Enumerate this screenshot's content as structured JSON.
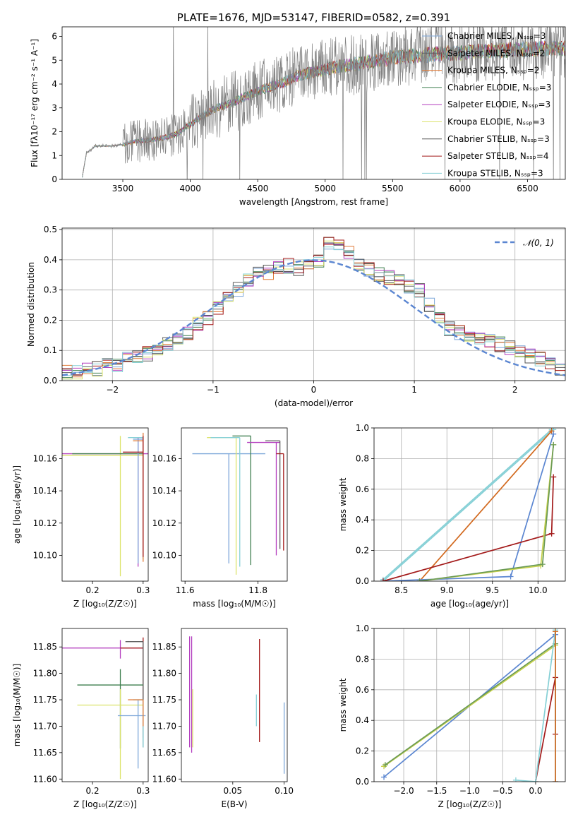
{
  "colors": {
    "chabrier_miles": "#7da7d9",
    "salpeter_miles": "#5f5f5f",
    "kroupa_miles": "#e07b39",
    "chabrier_elodie": "#3f7f4f",
    "salpeter_elodie": "#b43fbf",
    "kroupa_elodie": "#dce36b",
    "chabrier_stelib": "#555555",
    "salpeter_stelib": "#a31a1a",
    "kroupa_stelib": "#86d0d6",
    "gauss": "#5b86d1",
    "line_blue": "#5b86d1",
    "line_orange": "#d2691e",
    "line_red": "#a31a1a",
    "line_cyan": "#86d0d6",
    "line_yellow": "#c8d24d",
    "line_green": "#6a9a55"
  },
  "chart_data": [
    {
      "id": "spectrum",
      "type": "line",
      "title": "PLATE=1676, MJD=53147, FIBERID=0582, z=0.391",
      "xlabel": "wavelength [Angstrom, rest frame]",
      "ylabel": "Flux [fλ10⁻¹⁷ erg cm⁻² s⁻¹ A⁻¹]",
      "xlim": [
        3050,
        6780
      ],
      "ylim": [
        0,
        6.4
      ],
      "xticks": [
        "3500",
        "4000",
        "4500",
        "5000",
        "5500",
        "6000",
        "6500"
      ],
      "yticks": [
        "0",
        "1",
        "2",
        "3",
        "4",
        "5",
        "6"
      ],
      "legend": [
        "Chabrier MILES, N_SSP=3",
        "Salpeter MILES, N_SSP=2",
        "Kroupa MILES, N_SSP=2",
        "Chabrier ELODIE, N_SSP=3",
        "Salpeter ELODIE, N_SSP=3",
        "Kroupa ELODIE, N_SSP=3",
        "Chabrier STELIB, N_SSP=3",
        "Salpeter STELIB, N_SSP=4",
        "Kroupa STELIB, N_SSP=3"
      ],
      "legend_loc": "upper-right",
      "continuum": [
        [
          3200,
          0.1
        ],
        [
          3230,
          1.1
        ],
        [
          3300,
          1.4
        ],
        [
          3400,
          1.4
        ],
        [
          3500,
          1.45
        ],
        [
          3600,
          1.6
        ],
        [
          3700,
          1.65
        ],
        [
          3800,
          1.75
        ],
        [
          3900,
          1.9
        ],
        [
          4000,
          2.3
        ],
        [
          4100,
          2.7
        ],
        [
          4200,
          3.0
        ],
        [
          4300,
          3.2
        ],
        [
          4400,
          3.45
        ],
        [
          4500,
          3.7
        ],
        [
          4600,
          3.9
        ],
        [
          4700,
          4.1
        ],
        [
          4800,
          4.35
        ],
        [
          4900,
          4.5
        ],
        [
          5000,
          4.6
        ],
        [
          5100,
          4.75
        ],
        [
          5200,
          4.8
        ],
        [
          5300,
          4.9
        ],
        [
          5400,
          5.0
        ],
        [
          5500,
          5.1
        ],
        [
          5600,
          5.15
        ],
        [
          5700,
          5.2
        ],
        [
          5800,
          5.25
        ],
        [
          5900,
          5.3
        ],
        [
          6000,
          5.3
        ],
        [
          6100,
          5.35
        ],
        [
          6200,
          5.4
        ],
        [
          6300,
          5.4
        ],
        [
          6400,
          5.45
        ],
        [
          6500,
          5.45
        ],
        [
          6600,
          5.5
        ],
        [
          6700,
          5.5
        ]
      ]
    },
    {
      "id": "residuals",
      "type": "histogram",
      "xlabel": "(data-model)/error",
      "ylabel": "Normed distribution",
      "xlim": [
        -2.5,
        2.5
      ],
      "ylim": [
        0,
        0.505
      ],
      "xticks": [
        "−2",
        "−1",
        "0",
        "1",
        "2"
      ],
      "yticks": [
        "0.0",
        "0.1",
        "0.2",
        "0.3",
        "0.4",
        "0.5"
      ],
      "legend": [
        "𝒩(0, 1)"
      ],
      "legend_loc": "upper-right",
      "grid": true,
      "hist_template": [
        0.03,
        0.03,
        0.04,
        0.04,
        0.05,
        0.05,
        0.07,
        0.08,
        0.09,
        0.1,
        0.12,
        0.14,
        0.16,
        0.19,
        0.21,
        0.24,
        0.27,
        0.3,
        0.33,
        0.36,
        0.36,
        0.38,
        0.38,
        0.37,
        0.38,
        0.4,
        0.46,
        0.45,
        0.42,
        0.39,
        0.37,
        0.35,
        0.34,
        0.33,
        0.31,
        0.3,
        0.25,
        0.2,
        0.17,
        0.16,
        0.15,
        0.14,
        0.13,
        0.12,
        0.11,
        0.1,
        0.08,
        0.07,
        0.05,
        0.04
      ]
    },
    {
      "id": "age-vs-Z",
      "type": "errorbar",
      "xlabel": "Z [log₁₀(Z/Z☉)]",
      "ylabel": "age  [log₁₀(age/yr)]",
      "xlim": [
        0.14,
        0.31
      ],
      "ylim": [
        10.084,
        10.179
      ],
      "xticks": [
        "0.2",
        "0.3"
      ],
      "yticks": [
        "10.10",
        "10.12",
        "10.14",
        "10.16"
      ],
      "points": [
        {
          "x": 0.255,
          "y": 10.162,
          "xe": [
            0.115,
            0.045
          ],
          "ye": [
            0.075,
            0.012
          ],
          "c": "kroupa_elodie"
        },
        {
          "x": 0.29,
          "y": 10.163,
          "xe": [
            0.15,
            0.02
          ],
          "ye": [
            0.07,
            0.01
          ],
          "c": "salpeter_elodie"
        },
        {
          "x": 0.3,
          "y": 10.163,
          "xe": [
            0.14,
            0.0
          ],
          "ye": [
            0.065,
            0.008
          ],
          "c": "chabrier_elodie"
        },
        {
          "x": 0.3,
          "y": 10.173,
          "xe": [
            0.03,
            0.0
          ],
          "ye": [
            0.075,
            0.0
          ],
          "c": "kroupa_stelib"
        },
        {
          "x": 0.29,
          "y": 10.172,
          "xe": [
            0.01,
            0.01
          ],
          "ye": [
            0.077,
            0.0
          ],
          "c": "chabrier_miles"
        },
        {
          "x": 0.3,
          "y": 10.171,
          "xe": [
            0.02,
            0.0
          ],
          "ye": [
            0.075,
            0.005
          ],
          "c": "kroupa_miles"
        },
        {
          "x": 0.3,
          "y": 10.164,
          "xe": [
            0.04,
            0.0
          ],
          "ye": [
            0.065,
            0.01
          ],
          "c": "salpeter_stelib"
        }
      ]
    },
    {
      "id": "age-vs-mass",
      "type": "errorbar",
      "xlabel": "mass [log₁₀(M/M☉)]",
      "ylabel": "",
      "xlim": [
        11.59,
        11.88
      ],
      "ylim": [
        10.084,
        10.179
      ],
      "xticks": [
        "11.6",
        "11.8"
      ],
      "yticks": [
        "10.10",
        "10.12",
        "10.14",
        "10.16"
      ],
      "points": [
        {
          "x": 11.72,
          "y": 10.163,
          "xe": [
            0.1,
            0.1
          ],
          "ye": [
            0.068,
            0.0
          ],
          "c": "chabrier_miles"
        },
        {
          "x": 11.74,
          "y": 10.173,
          "xe": [
            0.08,
            0.0
          ],
          "ye": [
            0.085,
            0.0
          ],
          "c": "kroupa_elodie"
        },
        {
          "x": 11.75,
          "y": 10.173,
          "xe": [
            0.08,
            0.0
          ],
          "ye": [
            0.08,
            0.0
          ],
          "c": "kroupa_stelib"
        },
        {
          "x": 11.78,
          "y": 10.174,
          "xe": [
            0.05,
            0.0
          ],
          "ye": [
            0.08,
            0.0
          ],
          "c": "chabrier_elodie"
        },
        {
          "x": 11.85,
          "y": 10.17,
          "xe": [
            0.08,
            0.01
          ],
          "ye": [
            0.07,
            0.0
          ],
          "c": "salpeter_elodie"
        },
        {
          "x": 11.86,
          "y": 10.171,
          "xe": [
            0.04,
            0.0
          ],
          "ye": [
            0.067,
            0.0
          ],
          "c": "salpeter_miles"
        },
        {
          "x": 11.87,
          "y": 10.163,
          "xe": [
            0.02,
            0.0
          ],
          "ye": [
            0.06,
            0.0
          ],
          "c": "salpeter_stelib"
        }
      ]
    },
    {
      "id": "weight-vs-age",
      "type": "line",
      "xlabel": "age  [log₁₀(age/yr)]",
      "ylabel": "mass weight",
      "xlim": [
        8.2,
        10.3
      ],
      "ylim": [
        0,
        1.0
      ],
      "xticks": [
        "8.5",
        "9.0",
        "9.5",
        "10.0"
      ],
      "yticks": [
        "0.0",
        "0.2",
        "0.4",
        "0.6",
        "0.8",
        "1.0"
      ],
      "grid": true,
      "series": [
        {
          "c": "line_cyan",
          "x": [
            8.3,
            10.17
          ],
          "y": [
            0.0,
            0.99
          ]
        },
        {
          "c": "line_cyan",
          "x": [
            8.3,
            10.15
          ],
          "y": [
            0.01,
            0.99
          ]
        },
        {
          "c": "line_orange",
          "x": [
            8.7,
            10.15
          ],
          "y": [
            0.0,
            0.98
          ]
        },
        {
          "c": "line_blue",
          "x": [
            8.3,
            9.7,
            10.17
          ],
          "y": [
            0.0,
            0.03,
            0.96
          ]
        },
        {
          "c": "line_red",
          "x": [
            8.3,
            10.15,
            10.17
          ],
          "y": [
            0.0,
            0.31,
            0.68
          ]
        },
        {
          "c": "line_yellow",
          "x": [
            8.7,
            10.03,
            10.17
          ],
          "y": [
            0.0,
            0.1,
            0.89
          ]
        },
        {
          "c": "line_green",
          "x": [
            8.7,
            10.05,
            10.17
          ],
          "y": [
            0.0,
            0.11,
            0.89
          ]
        }
      ]
    },
    {
      "id": "mass-vs-Z",
      "type": "errorbar",
      "xlabel": "Z [log₁₀(Z/Z☉)]",
      "ylabel": "mass [log₁₀(M/M☉)]",
      "xlim": [
        0.14,
        0.31
      ],
      "ylim": [
        11.595,
        11.885
      ],
      "xticks": [
        "0.2",
        "0.3"
      ],
      "yticks": [
        "11.60",
        "11.65",
        "11.70",
        "11.75",
        "11.80",
        "11.85"
      ],
      "points": [
        {
          "x": 0.255,
          "y": 11.848,
          "xe": [
            0.115,
            0.045
          ],
          "ye": [
            0.02,
            0.015
          ],
          "c": "salpeter_elodie"
        },
        {
          "x": 0.3,
          "y": 11.848,
          "xe": [
            0.045,
            0.0
          ],
          "ye": [
            0.17,
            0.02
          ],
          "c": "salpeter_stelib"
        },
        {
          "x": 0.3,
          "y": 11.86,
          "xe": [
            0.035,
            0.0
          ],
          "ye": [
            0.2,
            0.0
          ],
          "c": "salpeter_miles"
        },
        {
          "x": 0.255,
          "y": 11.778,
          "xe": [
            0.085,
            0.045
          ],
          "ye": [
            0.12,
            0.03
          ],
          "c": "chabrier_elodie"
        },
        {
          "x": 0.255,
          "y": 11.74,
          "xe": [
            0.085,
            0.045
          ],
          "ye": [
            0.14,
            0.03
          ],
          "c": "kroupa_elodie"
        },
        {
          "x": 0.29,
          "y": 11.72,
          "xe": [
            0.04,
            0.015
          ],
          "ye": [
            0.1,
            0.03
          ],
          "c": "chabrier_miles"
        },
        {
          "x": 0.3,
          "y": 11.75,
          "xe": [
            0.02,
            0.0
          ],
          "ye": [
            0.09,
            0.0
          ],
          "c": "kroupa_stelib"
        },
        {
          "x": 0.3,
          "y": 11.75,
          "xe": [
            0.03,
            0.0
          ],
          "ye": [
            0.05,
            0.0
          ],
          "c": "kroupa_miles"
        }
      ]
    },
    {
      "id": "mass-vs-ebv",
      "type": "errorbar",
      "xlabel": "E(B-V)",
      "ylabel": "",
      "xlim": [
        0.0,
        0.103
      ],
      "ylim": [
        11.595,
        11.885
      ],
      "xticks": [
        "0.05",
        "0.10"
      ],
      "yticks": [
        "11.60",
        "11.65",
        "11.70",
        "11.75",
        "11.80",
        "11.85"
      ],
      "points": [
        {
          "x": 0.008,
          "y": 11.82,
          "xe": [
            0,
            0
          ],
          "ye": [
            0.16,
            0.05
          ],
          "c": "salpeter_elodie"
        },
        {
          "x": 0.01,
          "y": 11.82,
          "xe": [
            0,
            0
          ],
          "ye": [
            0.17,
            0.05
          ],
          "c": "salpeter_elodie"
        },
        {
          "x": 0.011,
          "y": 11.72,
          "xe": [
            0,
            0
          ],
          "ye": [
            0.06,
            0.05
          ],
          "c": "kroupa_elodie"
        },
        {
          "x": 0.073,
          "y": 11.73,
          "xe": [
            0,
            0
          ],
          "ye": [
            0.03,
            0.03
          ],
          "c": "kroupa_stelib"
        },
        {
          "x": 0.076,
          "y": 11.77,
          "xe": [
            0,
            0
          ],
          "ye": [
            0.1,
            0.095
          ],
          "c": "salpeter_stelib"
        },
        {
          "x": 0.1,
          "y": 11.68,
          "xe": [
            0,
            0
          ],
          "ye": [
            0.07,
            0.065
          ],
          "c": "chabrier_miles"
        }
      ]
    },
    {
      "id": "weight-vs-Z",
      "type": "line",
      "xlabel": "Z [log₁₀(Z/Z☉)]",
      "ylabel": "mass weight",
      "xlim": [
        -2.45,
        0.45
      ],
      "ylim": [
        0,
        1.0
      ],
      "xticks": [
        "−2.0",
        "−1.5",
        "−1.0",
        "−0.5",
        "0.0"
      ],
      "yticks": [
        "0.0",
        "0.2",
        "0.4",
        "0.6",
        "0.8",
        "1.0"
      ],
      "grid": true,
      "series": [
        {
          "c": "line_blue",
          "x": [
            -2.3,
            0.3
          ],
          "y": [
            0.03,
            0.96
          ]
        },
        {
          "c": "line_yellow",
          "x": [
            -2.3,
            0.3
          ],
          "y": [
            0.1,
            0.89
          ]
        },
        {
          "c": "line_green",
          "x": [
            -2.28,
            0.3
          ],
          "y": [
            0.11,
            0.9
          ]
        },
        {
          "c": "line_red",
          "x": [
            0.0,
            0.3,
            0.3
          ],
          "y": [
            0.0,
            0.68,
            0.31
          ]
        },
        {
          "c": "line_cyan",
          "x": [
            -0.3,
            0.0,
            0.3,
            0.3
          ],
          "y": [
            0.01,
            0.0,
            0.99,
            0.0
          ]
        },
        {
          "c": "line_orange",
          "x": [
            0.3,
            0.3
          ],
          "y": [
            0.0,
            0.98
          ]
        }
      ]
    }
  ]
}
